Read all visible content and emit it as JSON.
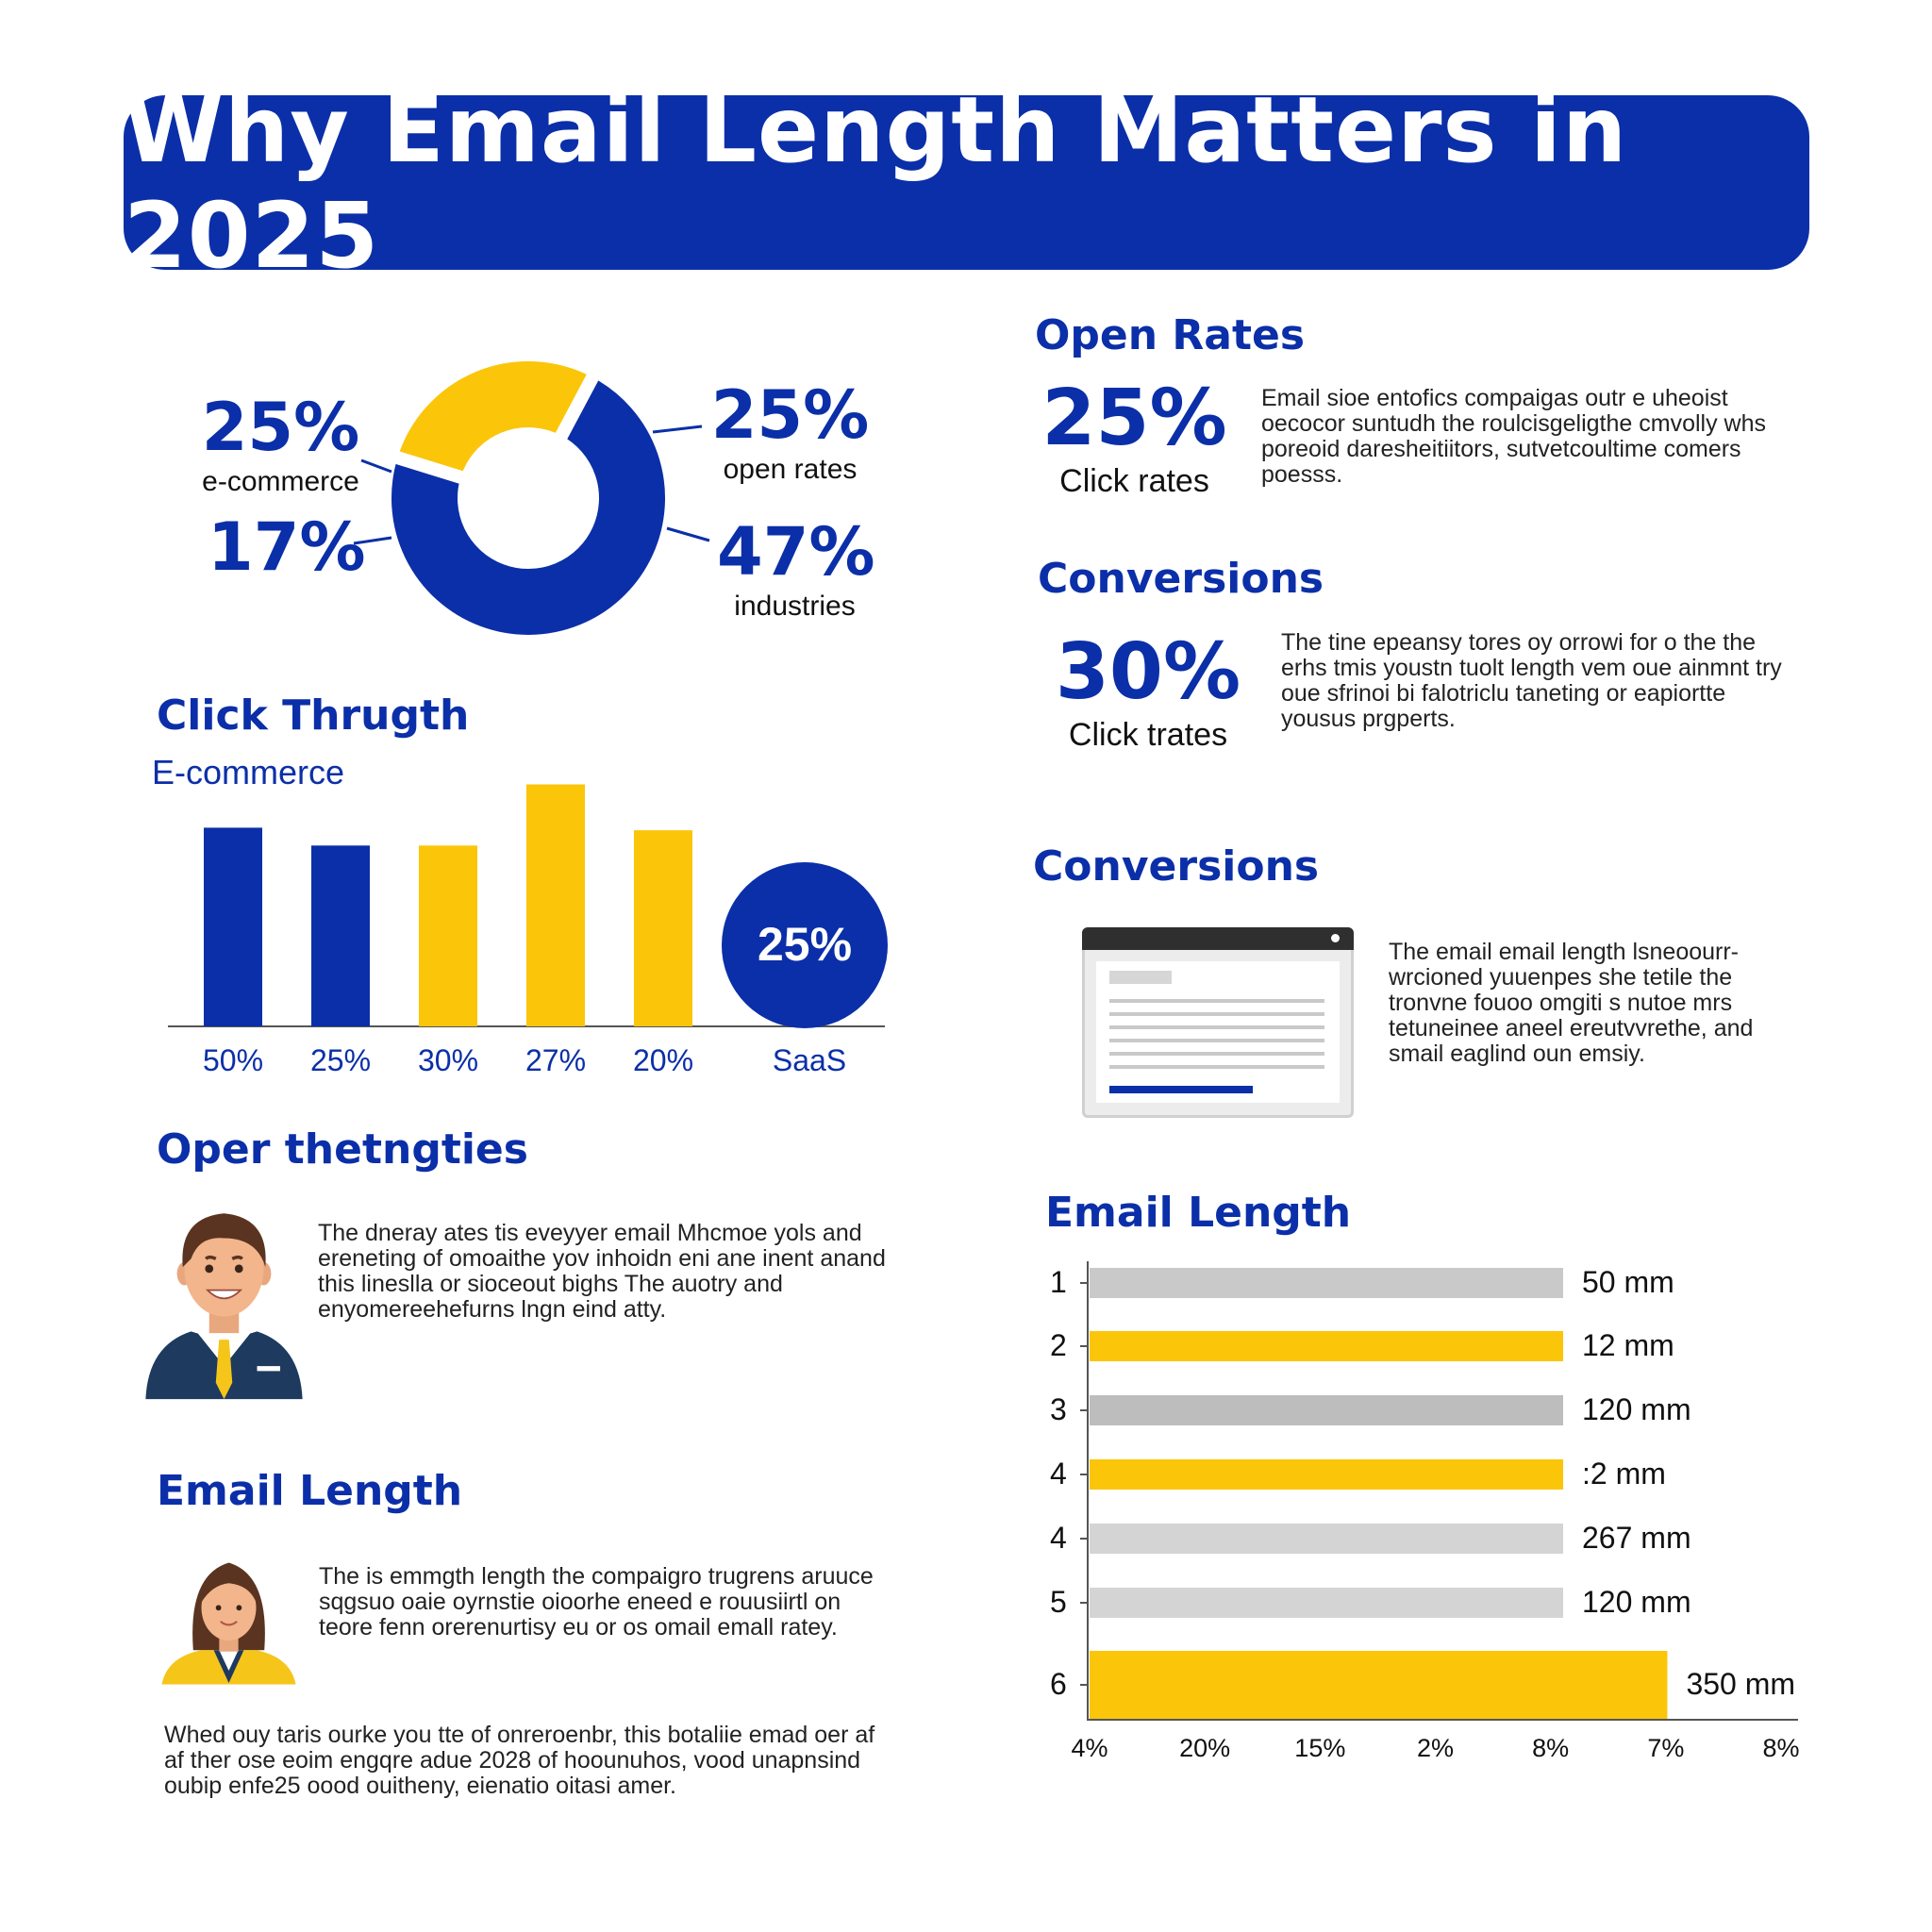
{
  "title": "Why Email Length Matters in 2025",
  "colors": {
    "blue": "#0b2fa8",
    "yellow": "#fbc50a",
    "gray": "#c9c9c9"
  },
  "donut": {
    "labels": [
      {
        "value": "25%",
        "text": "e-commerce"
      },
      {
        "value": "17%",
        "text": ""
      },
      {
        "value": "25%",
        "text": "open rates"
      },
      {
        "value": "47%",
        "text": "industries"
      }
    ]
  },
  "click_through": {
    "heading": "Click Thrugth",
    "subheading": "E-commerce",
    "badge": "25%"
  },
  "open_rates": {
    "heading": "Open Rates",
    "value": "25%",
    "label": "Click rates",
    "text": "Email sioe entofics compaigas outr e uheoist oecocor suntudh the roulcisgeligthe cmvolly whs poreoid daresheitiitors, sutvetcoultime comers poesss."
  },
  "conversions_1": {
    "heading": "Conversions",
    "value": "30%",
    "label": "Click trates",
    "text": "The tine epeansy tores oy orrowi for o the the erhs tmis youstn tuolt length vem oue ainmnt try oue sfrinoi bi falotriclu taneting or eapiortte yousus prgperts."
  },
  "conversions_2": {
    "heading": "Conversions",
    "text": "The email email length lsneoourr-wrcioned yuuenpes she tetile the tronvne fouoo omgiti s nutoe mrs tetuneinee aneel ereutvvrethe, and smail eaglind oun emsiy."
  },
  "oper": {
    "heading": "Oper thetngties",
    "text": "The dneray ates tis eveyyer email Mhcmoe yols and ereneting of omoaithe yov inhoidn eni ane inent anand this lineslla or sioceout bighs The auotry and enyomereehefurns lngn eind atty."
  },
  "email_left": {
    "heading": "Email Length",
    "text": "The is emmgth length the compaigro trugrens aruuce sqgsuo oaie oyrnstie oioorhe eneed e rouusiirtl on teore fenn orerenurtisy eu or os omail emall ratey.",
    "footer": "Whed ouy taris ourke you tte of onreroenbr, this botaliie emad oer af af ther ose eoim engqre adue 2028 of hoounuhos, vood unapnsind oubip enfe25 oood ouitheny, eienatio oitasi amer."
  },
  "email_length_heading": "Email Length",
  "chart_data": [
    {
      "type": "bar",
      "title": "Click Thrugth",
      "subtitle": "E-commerce",
      "categories": [
        "50%",
        "25%",
        "30%",
        "27%",
        "20%"
      ],
      "values": [
        78,
        71,
        71,
        95,
        77
      ],
      "colors": [
        "#0b2fa8",
        "#0b2fa8",
        "#fbc50a",
        "#fbc50a",
        "#fbc50a"
      ],
      "badge": {
        "value": "25%",
        "label": "SaaS"
      },
      "ylim": [
        0,
        100
      ]
    },
    {
      "type": "pie",
      "donut": true,
      "values": [
        72,
        28
      ],
      "colors": [
        "#0b2fa8",
        "#fbc50a"
      ]
    },
    {
      "type": "bar",
      "orientation": "horizontal",
      "title": "Email Length",
      "categories": [
        "1",
        "2",
        "3",
        "4",
        "4",
        "5",
        "6"
      ],
      "values": [
        100,
        100,
        100,
        100,
        100,
        100,
        122
      ],
      "value_labels": [
        "50 mm",
        "12 mm",
        "120 mm",
        ":2 mm",
        "267 mm",
        "120 mm",
        "350 mm"
      ],
      "colors": [
        "#c9c9c9",
        "#fbc50a",
        "#bdbdbd",
        "#fbc50a",
        "#d4d4d4",
        "#d4d4d4",
        "#fbc50a"
      ],
      "x_tick_labels": [
        "4%",
        "20%",
        "15%",
        "2%",
        "8%",
        "7%",
        "8%"
      ],
      "xlim": [
        0,
        150
      ]
    }
  ]
}
